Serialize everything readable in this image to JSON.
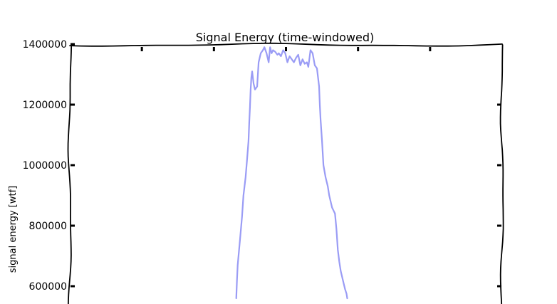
{
  "chart_data": {
    "type": "line",
    "title": "Signal Energy (time-windowed)",
    "xlabel": "",
    "ylabel": "signal energy [wtf]",
    "ylim": [
      560000,
      1400000
    ],
    "xlim": [
      0,
      6
    ],
    "grid": false,
    "y_tick_values": [
      600000,
      800000,
      1000000,
      1200000,
      1400000
    ],
    "y_tick_labels": [
      "600000",
      "800000",
      "1000000",
      "1200000",
      "1400000"
    ],
    "x_tick_values": [
      1,
      2,
      3,
      4,
      5
    ],
    "series": [
      {
        "name": "",
        "color": "#9a9cf5",
        "x": [
          2.31,
          2.32,
          2.33,
          2.36,
          2.39,
          2.41,
          2.44,
          2.46,
          2.48,
          2.49,
          2.5,
          2.51,
          2.52,
          2.53,
          2.55,
          2.57,
          2.6,
          2.62,
          2.65,
          2.68,
          2.7,
          2.73,
          2.76,
          2.78,
          2.8,
          2.82,
          2.85,
          2.88,
          2.9,
          2.93,
          2.96,
          2.99,
          3.02,
          3.05,
          3.08,
          3.11,
          3.14,
          3.17,
          3.2,
          3.23,
          3.26,
          3.29,
          3.31,
          3.34,
          3.37,
          3.4,
          3.43,
          3.46,
          3.47,
          3.48,
          3.5,
          3.52,
          3.55,
          3.58,
          3.6,
          3.62,
          3.64,
          3.66,
          3.68,
          3.7,
          3.72,
          3.74,
          3.76,
          3.78,
          3.8,
          3.82,
          3.84,
          3.85
        ],
        "y": [
          560000,
          620000,
          670000,
          750000,
          830000,
          900000,
          960000,
          1020000,
          1080000,
          1140000,
          1190000,
          1250000,
          1290000,
          1310000,
          1270000,
          1250000,
          1260000,
          1340000,
          1370000,
          1380000,
          1390000,
          1370000,
          1340000,
          1390000,
          1370000,
          1380000,
          1375000,
          1365000,
          1370000,
          1360000,
          1380000,
          1370000,
          1340000,
          1360000,
          1350000,
          1340000,
          1355000,
          1365000,
          1330000,
          1350000,
          1335000,
          1340000,
          1325000,
          1380000,
          1370000,
          1330000,
          1320000,
          1260000,
          1200000,
          1150000,
          1080000,
          1000000,
          960000,
          930000,
          900000,
          880000,
          860000,
          850000,
          840000,
          790000,
          720000,
          680000,
          650000,
          630000,
          610000,
          590000,
          575000,
          560000
        ]
      }
    ]
  }
}
